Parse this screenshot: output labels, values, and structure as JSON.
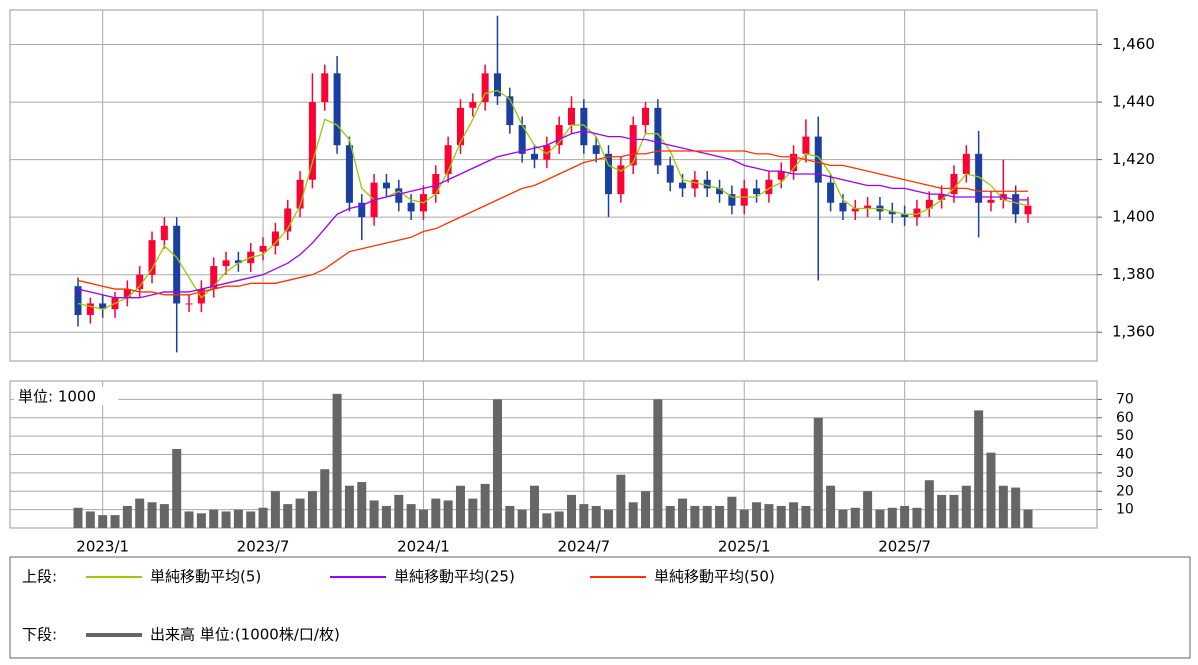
{
  "chart_data": [
    {
      "type": "candlestick",
      "up_color": "#ff0033",
      "down_color": "#1a3fa0",
      "open": [
        1376,
        1366,
        1370,
        1368,
        1372,
        1375,
        1380,
        1392,
        1397,
        1370,
        1370,
        1375,
        1383,
        1385,
        1384,
        1388,
        1390,
        1395,
        1403,
        1413,
        1440,
        1450,
        1425,
        1405,
        1400,
        1412,
        1410,
        1405,
        1402,
        1408,
        1415,
        1425,
        1438,
        1440,
        1450,
        1442,
        1432,
        1422,
        1420,
        1425,
        1432,
        1438,
        1425,
        1422,
        1408,
        1418,
        1432,
        1438,
        1418,
        1412,
        1410,
        1413,
        1410,
        1408,
        1404,
        1410,
        1408,
        1413,
        1416,
        1422,
        1428,
        1412,
        1405,
        1402,
        1403,
        1404,
        1402,
        1401,
        1400,
        1403,
        1406,
        1408,
        1415,
        1422,
        1405,
        1406,
        1408,
        1401
      ],
      "high": [
        1379,
        1372,
        1373,
        1374,
        1378,
        1383,
        1395,
        1400,
        1400,
        1373,
        1378,
        1386,
        1388,
        1388,
        1391,
        1393,
        1398,
        1406,
        1416,
        1450,
        1453,
        1456,
        1428,
        1408,
        1415,
        1415,
        1413,
        1408,
        1411,
        1418,
        1428,
        1441,
        1443,
        1453,
        1470,
        1445,
        1435,
        1425,
        1428,
        1435,
        1442,
        1441,
        1428,
        1425,
        1421,
        1435,
        1440,
        1441,
        1421,
        1415,
        1416,
        1416,
        1413,
        1411,
        1413,
        1413,
        1416,
        1419,
        1425,
        1434,
        1435,
        1415,
        1408,
        1406,
        1407,
        1407,
        1405,
        1404,
        1406,
        1409,
        1411,
        1418,
        1425,
        1430,
        1409,
        1420,
        1411,
        1407
      ],
      "low": [
        1362,
        1363,
        1365,
        1365,
        1369,
        1372,
        1377,
        1389,
        1353,
        1367,
        1367,
        1372,
        1380,
        1381,
        1381,
        1385,
        1387,
        1392,
        1400,
        1410,
        1437,
        1422,
        1402,
        1392,
        1397,
        1407,
        1402,
        1399,
        1399,
        1405,
        1412,
        1422,
        1435,
        1437,
        1439,
        1429,
        1419,
        1417,
        1417,
        1422,
        1429,
        1422,
        1419,
        1400,
        1405,
        1415,
        1429,
        1415,
        1409,
        1407,
        1407,
        1407,
        1405,
        1401,
        1401,
        1405,
        1405,
        1410,
        1413,
        1419,
        1378,
        1402,
        1399,
        1399,
        1400,
        1399,
        1398,
        1397,
        1397,
        1400,
        1403,
        1405,
        1412,
        1393,
        1402,
        1403,
        1398,
        1398
      ],
      "close": [
        1366,
        1370,
        1368,
        1372,
        1375,
        1380,
        1392,
        1397,
        1370,
        1370,
        1375,
        1383,
        1385,
        1384,
        1388,
        1390,
        1395,
        1403,
        1413,
        1440,
        1450,
        1425,
        1405,
        1400,
        1412,
        1410,
        1405,
        1402,
        1408,
        1415,
        1425,
        1438,
        1440,
        1450,
        1442,
        1432,
        1422,
        1420,
        1425,
        1432,
        1438,
        1425,
        1422,
        1408,
        1418,
        1432,
        1438,
        1418,
        1412,
        1410,
        1413,
        1410,
        1408,
        1404,
        1410,
        1408,
        1413,
        1416,
        1422,
        1428,
        1412,
        1405,
        1402,
        1403,
        1404,
        1402,
        1401,
        1400,
        1403,
        1406,
        1408,
        1415,
        1422,
        1405,
        1406,
        1408,
        1401,
        1404
      ],
      "series": [
        {
          "name": "単純移動平均(5)",
          "color": "#99cc00",
          "values": [
            1370,
            1369,
            1368,
            1370,
            1372,
            1376,
            1382,
            1390,
            1386,
            1379,
            1372,
            1376,
            1381,
            1384,
            1386,
            1387,
            1391,
            1396,
            1404,
            1419,
            1434,
            1432,
            1427,
            1410,
            1406,
            1407,
            1409,
            1406,
            1405,
            1408,
            1416,
            1426,
            1434,
            1443,
            1444,
            1441,
            1432,
            1425,
            1422,
            1426,
            1432,
            1432,
            1428,
            1418,
            1416,
            1419,
            1429,
            1429,
            1423,
            1413,
            1412,
            1411,
            1410,
            1407,
            1407,
            1407,
            1410,
            1412,
            1417,
            1422,
            1421,
            1415,
            1406,
            1403,
            1403,
            1403,
            1402,
            1401,
            1401,
            1403,
            1406,
            1410,
            1415,
            1414,
            1411,
            1406,
            1405,
            1404
          ]
        },
        {
          "name": "単純移動平均(25)",
          "color": "#9900ff",
          "values": [
            1375,
            1374,
            1373,
            1372,
            1372,
            1372,
            1373,
            1374,
            1374,
            1374,
            1375,
            1376,
            1377,
            1378,
            1379,
            1380,
            1382,
            1384,
            1387,
            1391,
            1396,
            1401,
            1403,
            1404,
            1406,
            1407,
            1408,
            1409,
            1410,
            1411,
            1413,
            1415,
            1417,
            1419,
            1421,
            1422,
            1423,
            1424,
            1425,
            1427,
            1429,
            1430,
            1429,
            1428,
            1428,
            1427,
            1427,
            1426,
            1425,
            1424,
            1423,
            1422,
            1421,
            1420,
            1418,
            1417,
            1416,
            1416,
            1415,
            1415,
            1415,
            1414,
            1413,
            1412,
            1411,
            1411,
            1410,
            1410,
            1409,
            1408,
            1408,
            1407,
            1407,
            1407,
            1407,
            1407,
            1406,
            1406
          ]
        },
        {
          "name": "単純移動平均(50)",
          "color": "#ff3300",
          "values": [
            1378,
            1377,
            1376,
            1375,
            1375,
            1374,
            1374,
            1373,
            1373,
            1373,
            1374,
            1375,
            1376,
            1376,
            1377,
            1377,
            1377,
            1378,
            1379,
            1380,
            1382,
            1385,
            1388,
            1389,
            1390,
            1391,
            1392,
            1393,
            1395,
            1396,
            1398,
            1400,
            1402,
            1404,
            1406,
            1408,
            1410,
            1411,
            1413,
            1415,
            1417,
            1419,
            1420,
            1421,
            1421,
            1422,
            1422,
            1423,
            1423,
            1423,
            1423,
            1423,
            1423,
            1423,
            1423,
            1422,
            1422,
            1421,
            1421,
            1420,
            1419,
            1418,
            1418,
            1417,
            1416,
            1415,
            1414,
            1413,
            1412,
            1411,
            1410,
            1410,
            1410,
            1409,
            1409,
            1409,
            1409,
            1409
          ]
        }
      ],
      "ylim": [
        1350,
        1472
      ],
      "yticks": [
        {
          "value": 1360,
          "label": "1,360"
        },
        {
          "value": 1380,
          "label": "1,380"
        },
        {
          "value": 1400,
          "label": "1,400"
        },
        {
          "value": 1420,
          "label": "1,420"
        },
        {
          "value": 1440,
          "label": "1,440"
        },
        {
          "value": 1460,
          "label": "1,460"
        }
      ],
      "grid": true
    },
    {
      "type": "bar",
      "unit_label": "単位: 1000",
      "categories": [
        null,
        null,
        "2023/1",
        null,
        null,
        null,
        null,
        null,
        null,
        null,
        null,
        null,
        null,
        null,
        null,
        "2023/7",
        null,
        null,
        null,
        null,
        null,
        null,
        null,
        null,
        null,
        null,
        null,
        null,
        "2024/1",
        null,
        null,
        null,
        null,
        null,
        null,
        null,
        null,
        null,
        null,
        null,
        null,
        "2024/7",
        null,
        null,
        null,
        null,
        null,
        null,
        null,
        null,
        null,
        null,
        null,
        null,
        "2025/1",
        null,
        null,
        null,
        null,
        null,
        null,
        null,
        null,
        null,
        null,
        null,
        null,
        "2025/7",
        null,
        null,
        null,
        null,
        null,
        null,
        null,
        null,
        null,
        null
      ],
      "series": [
        {
          "name": "出来高 単位:(1000株/口/枚)",
          "color": "#666666",
          "values": [
            11,
            9,
            7,
            7,
            12,
            16,
            14,
            13,
            43,
            9,
            8,
            10,
            9,
            10,
            9,
            11,
            20,
            13,
            16,
            20,
            32,
            73,
            23,
            25,
            15,
            12,
            18,
            13,
            10,
            16,
            15,
            23,
            16,
            24,
            70,
            12,
            10,
            23,
            8,
            9,
            18,
            13,
            12,
            10,
            29,
            14,
            20,
            70,
            12,
            16,
            12,
            12,
            12,
            17,
            10,
            14,
            13,
            12,
            14,
            12,
            60,
            23,
            10,
            11,
            20,
            10,
            11,
            12,
            11,
            26,
            18,
            18,
            23,
            64,
            41,
            23,
            22,
            10
          ]
        }
      ],
      "ylim": [
        0,
        80
      ],
      "yticks": [
        10,
        20,
        30,
        40,
        50,
        60,
        70
      ],
      "grid": true
    }
  ],
  "legend": {
    "upper_label": "上段:",
    "lower_label": "下段:"
  }
}
